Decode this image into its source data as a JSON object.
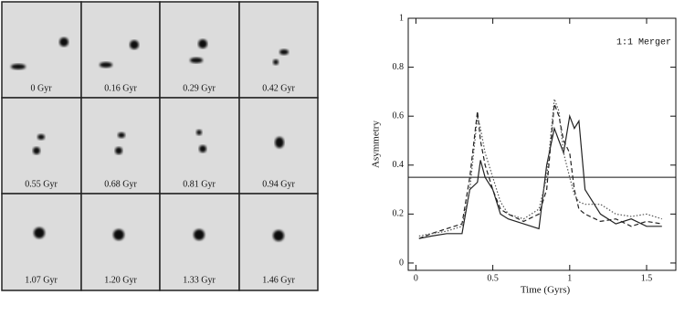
{
  "panels": {
    "labels": [
      "0 Gyr",
      "0.16 Gyr",
      "0.29 Gyr",
      "0.42 Gyr",
      "0.55 Gyr",
      "0.68 Gyr",
      "0.81 Gyr",
      "0.94 Gyr",
      "1.07 Gyr",
      "1.20 Gyr",
      "1.33 Gyr",
      "1.46 Gyr"
    ]
  },
  "chart_data": {
    "type": "line",
    "annotation": "1:1 Merger",
    "x_label": "Time (Gyrs)",
    "y_label": "Asymmetry",
    "x": [
      0.02,
      0.1,
      0.2,
      0.3,
      0.35,
      0.4,
      0.42,
      0.45,
      0.5,
      0.55,
      0.6,
      0.7,
      0.8,
      0.85,
      0.9,
      0.93,
      0.96,
      1.0,
      1.03,
      1.06,
      1.1,
      1.2,
      1.3,
      1.4,
      1.5,
      1.6
    ],
    "series": [
      {
        "color": "#222222",
        "dash": "solid",
        "values": [
          0.1,
          0.11,
          0.12,
          0.12,
          0.3,
          0.33,
          0.42,
          0.35,
          0.3,
          0.2,
          0.18,
          0.16,
          0.14,
          0.4,
          0.55,
          0.5,
          0.45,
          0.6,
          0.55,
          0.58,
          0.3,
          0.2,
          0.16,
          0.18,
          0.15,
          0.15
        ]
      },
      {
        "color": "#222222",
        "dash": "dashed",
        "values": [
          0.1,
          0.12,
          0.14,
          0.16,
          0.35,
          0.62,
          0.5,
          0.4,
          0.3,
          0.22,
          0.2,
          0.17,
          0.2,
          0.3,
          0.65,
          0.6,
          0.5,
          0.45,
          0.3,
          0.22,
          0.2,
          0.17,
          0.18,
          0.15,
          0.17,
          0.16
        ]
      },
      {
        "color": "#555555",
        "dash": "dotted",
        "values": [
          0.11,
          0.12,
          0.13,
          0.15,
          0.3,
          0.6,
          0.55,
          0.45,
          0.35,
          0.25,
          0.2,
          0.18,
          0.22,
          0.35,
          0.67,
          0.62,
          0.45,
          0.35,
          0.28,
          0.25,
          0.24,
          0.24,
          0.2,
          0.19,
          0.2,
          0.18
        ]
      }
    ],
    "hline": 0.35,
    "xlim": [
      -0.05,
      1.69
    ],
    "xticks": [
      0,
      0.5,
      1,
      1.5
    ],
    "ylim": [
      -0.03,
      1
    ],
    "yticks": [
      0,
      0.2,
      0.4,
      0.6,
      0.8,
      1
    ]
  }
}
